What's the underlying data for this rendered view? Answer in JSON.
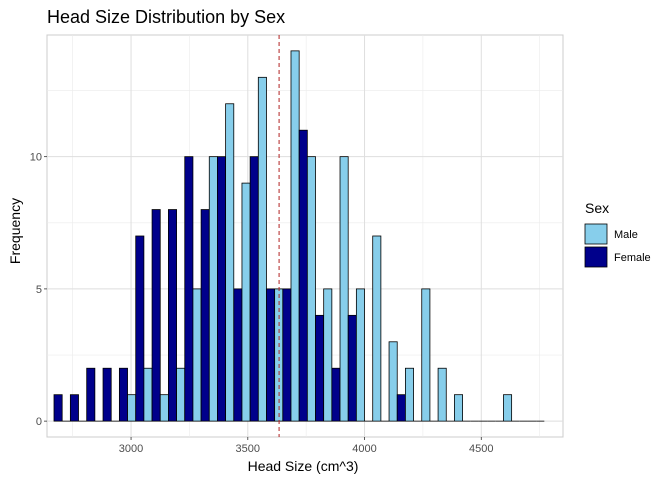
{
  "chart_data": {
    "type": "bar",
    "title": "Head Size Distribution by Sex",
    "xlabel": "Head Size (cm^3)",
    "ylabel": "Frequency",
    "xlim": [
      2640,
      4850
    ],
    "ylim": [
      -0.6,
      14.6
    ],
    "bin_width": 70,
    "x_ticks": [
      3000,
      3500,
      4000,
      4500
    ],
    "y_ticks": [
      0,
      5,
      10
    ],
    "grid": true,
    "legend": {
      "title": "Sex",
      "position": "right",
      "entries": [
        {
          "label": "Male",
          "color": "#87CEEB"
        },
        {
          "label": "Female",
          "color": "#00008B"
        }
      ]
    },
    "reference_line": {
      "x": 3634,
      "style": "dashed",
      "color": "#B22222"
    },
    "series": [
      {
        "name": "Female",
        "color": "#00008B",
        "bins": [
          2705,
          2775,
          2845,
          2915,
          2985,
          3055,
          3125,
          3195,
          3265,
          3335,
          3405,
          3475,
          3545,
          3615,
          3685,
          3755,
          3825,
          3895,
          3965,
          4035,
          4105,
          4175,
          4245,
          4315,
          4385,
          4455,
          4525,
          4595,
          4665,
          4735
        ],
        "values": [
          1,
          1,
          2,
          2,
          2,
          7,
          8,
          8,
          10,
          8,
          10,
          5,
          10,
          5,
          5,
          11,
          4,
          2,
          4,
          0,
          0,
          1,
          0,
          0,
          0,
          0,
          0,
          0,
          0,
          0
        ]
      },
      {
        "name": "Male",
        "color": "#87CEEB",
        "bins": [
          2705,
          2775,
          2845,
          2915,
          2985,
          3055,
          3125,
          3195,
          3265,
          3335,
          3405,
          3475,
          3545,
          3615,
          3685,
          3755,
          3825,
          3895,
          3965,
          4035,
          4105,
          4175,
          4245,
          4315,
          4385,
          4455,
          4525,
          4595,
          4665,
          4735
        ],
        "values": [
          0,
          0,
          0,
          0,
          1,
          2,
          1,
          2,
          5,
          10,
          12,
          9,
          13,
          5,
          14,
          10,
          5,
          10,
          5,
          7,
          3,
          2,
          5,
          2,
          1,
          0,
          0,
          1,
          0,
          0
        ]
      }
    ]
  }
}
